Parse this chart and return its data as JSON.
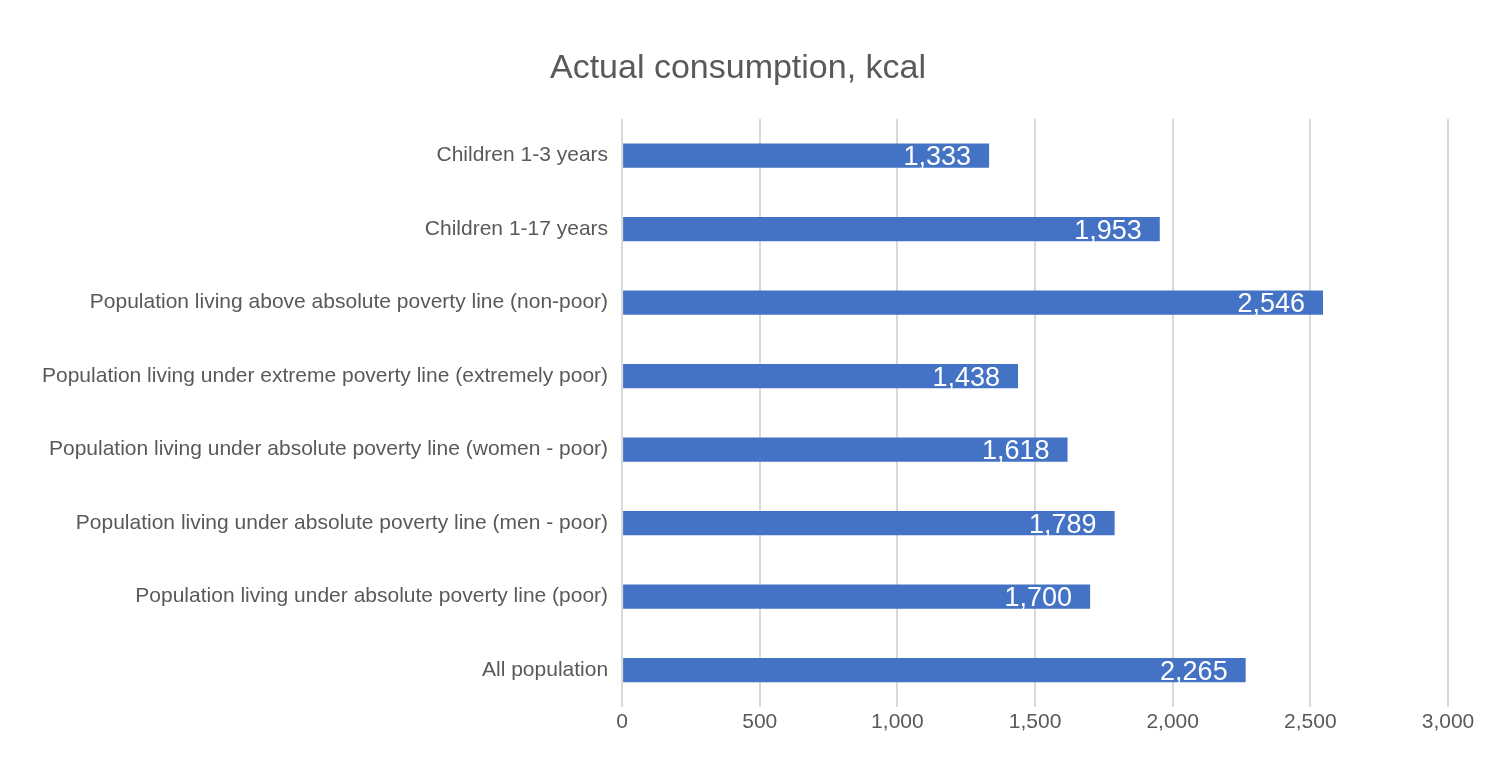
{
  "chart_data": {
    "type": "bar",
    "orientation": "horizontal",
    "title": "Actual consumption, kcal",
    "categories": [
      "Children 1-3 years",
      "Children 1-17 years",
      "Population living above absolute poverty line (non-poor)",
      "Population living under extreme poverty line (extremely poor)",
      "Population living under absolute poverty line (women - poor)",
      "Population living under absolute poverty line (men - poor)",
      "Population living under absolute poverty line (poor)",
      "All population"
    ],
    "values": [
      1333,
      1953,
      2546,
      1438,
      1618,
      1789,
      1700,
      2265
    ],
    "value_labels": [
      "1,333",
      "1,953",
      "2,546",
      "1,438",
      "1,618",
      "1,789",
      "1,700",
      "2,265"
    ],
    "color": "#4472c4",
    "xlim": [
      0,
      3000
    ],
    "xticks": [
      0,
      {
        "value": 500,
        "label": "500"
      },
      {
        "value": 1000,
        "label": "1,000"
      },
      {
        "value": 1500,
        "label": "1,500"
      },
      {
        "value": 2000,
        "label": "2,000"
      },
      {
        "value": 2500,
        "label": "2,500"
      },
      {
        "value": 3000,
        "label": "3,000"
      }
    ],
    "grid": "x",
    "legend": false
  }
}
